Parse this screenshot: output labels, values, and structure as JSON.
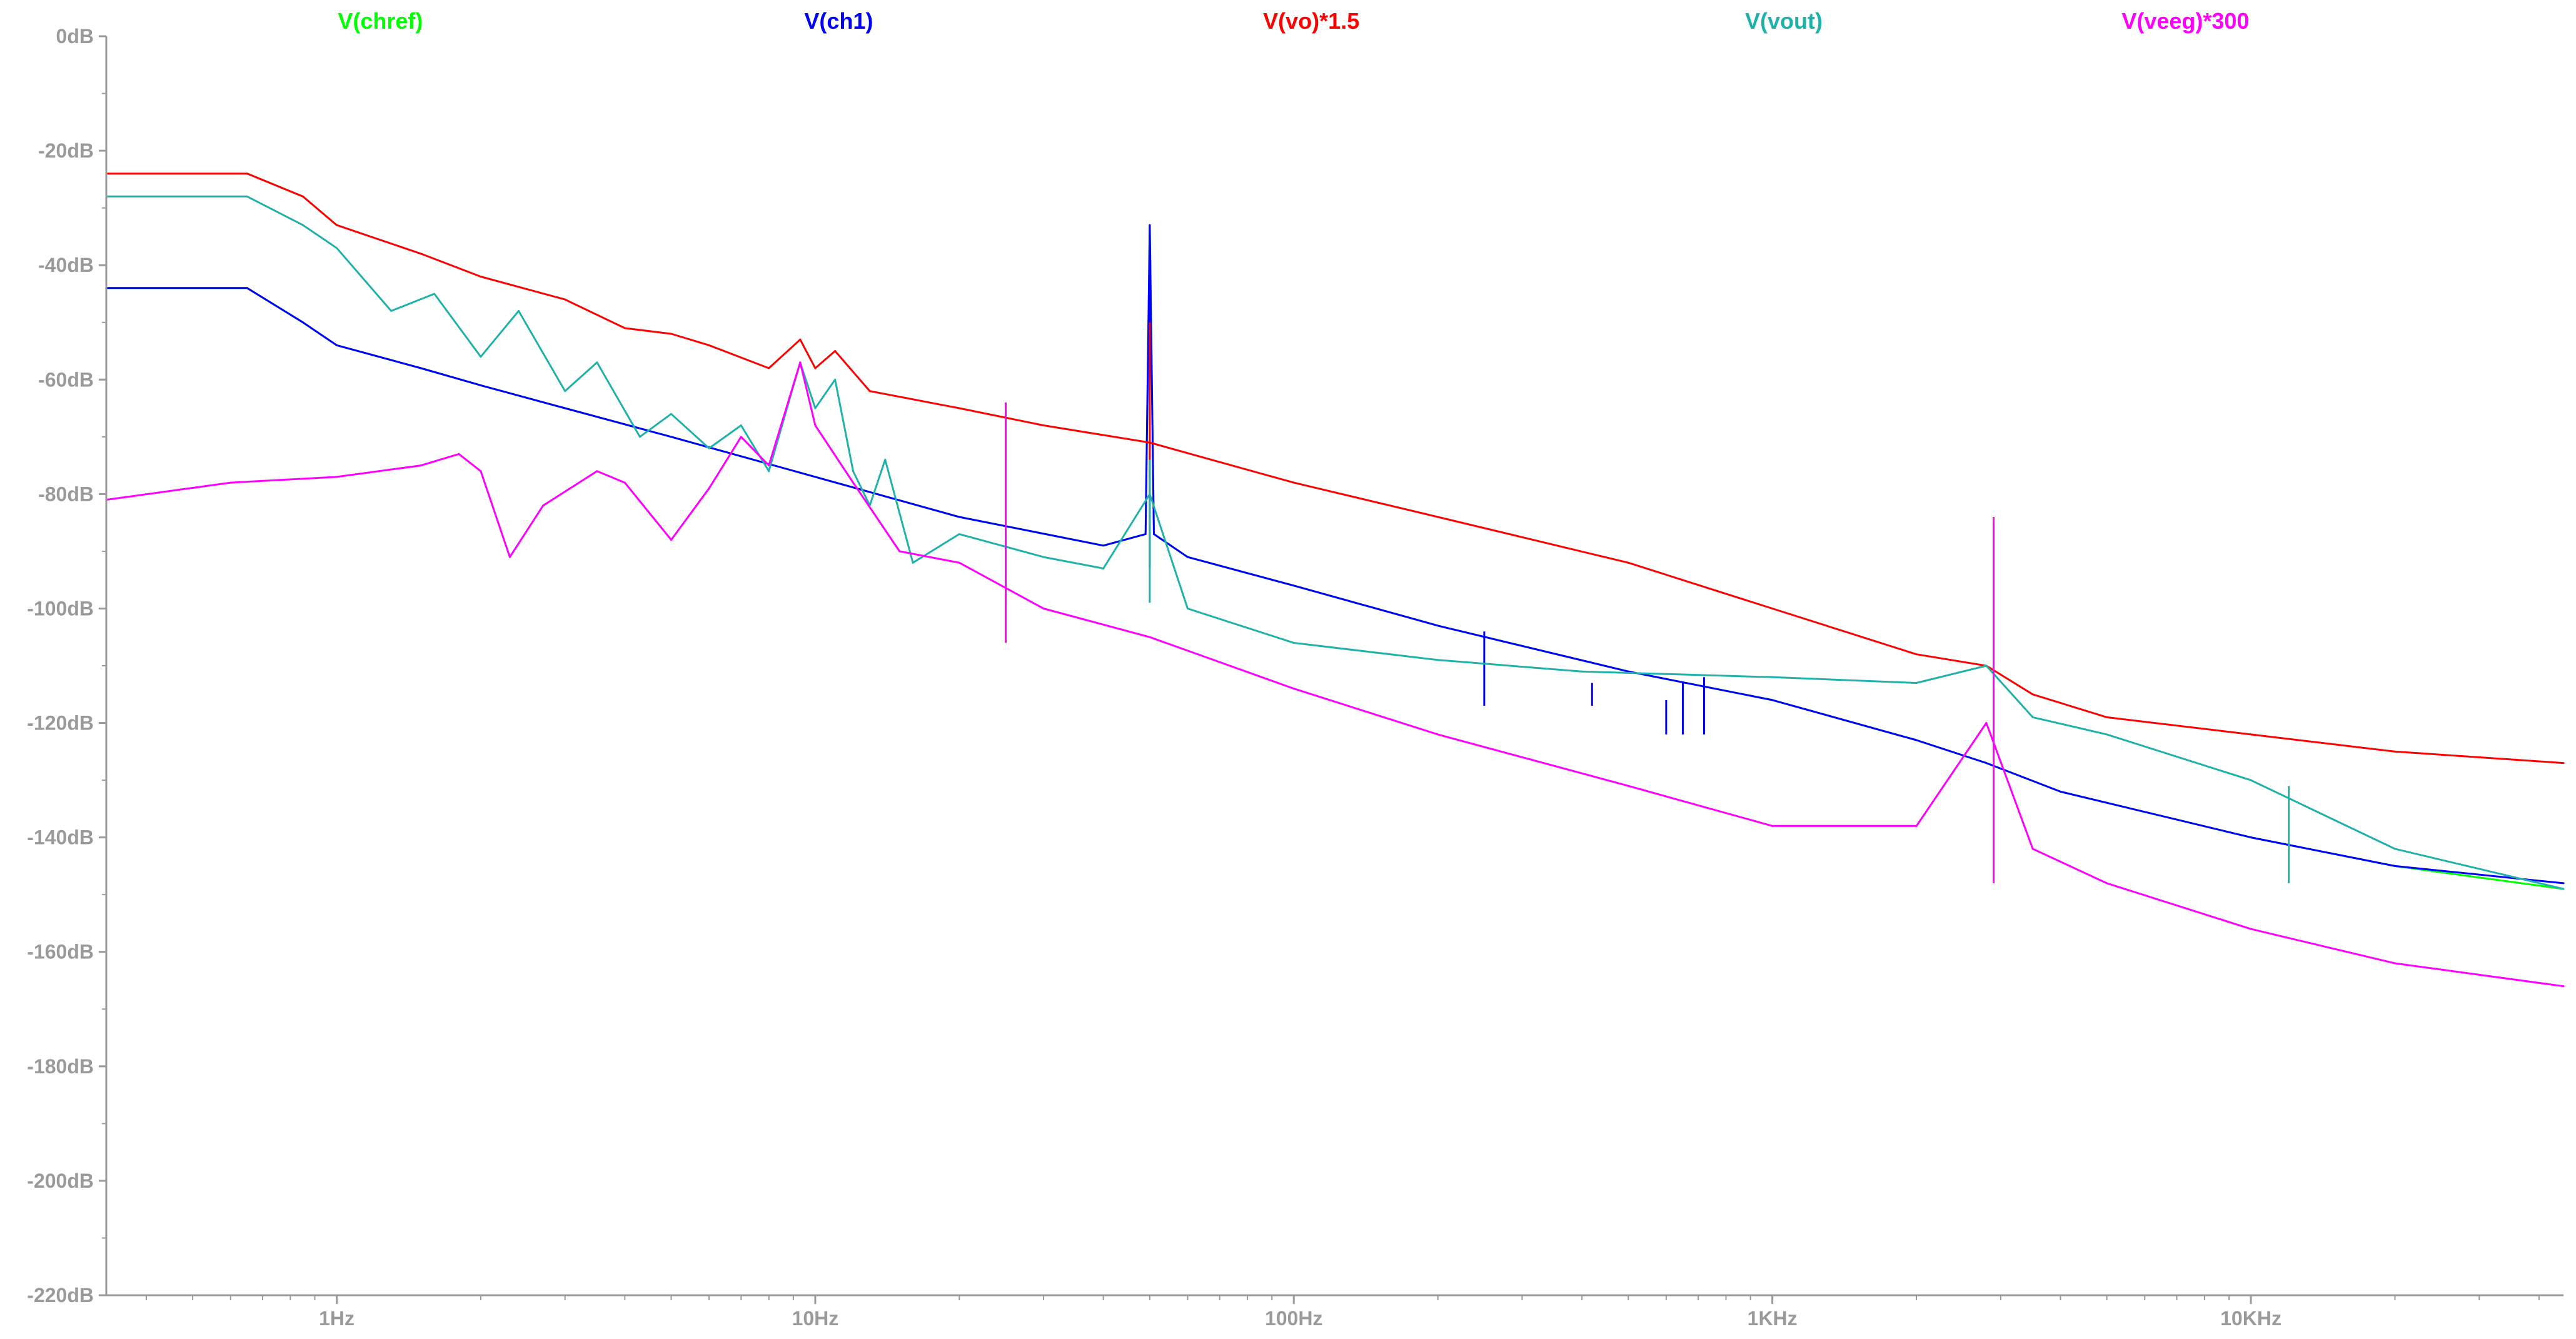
{
  "app": {
    "window": "LTspice FFT waveform plot"
  },
  "chart_data": {
    "type": "line",
    "x_scale": "log",
    "x_unit": "Hz",
    "xlim": [
      0.33,
      45000
    ],
    "ylim": [
      -220,
      0
    ],
    "grid": false,
    "legend_placement": "top",
    "x_ticks": [
      {
        "value": 1,
        "label": "1Hz"
      },
      {
        "value": 10,
        "label": "10Hz"
      },
      {
        "value": 100,
        "label": "100Hz"
      },
      {
        "value": 1000,
        "label": "1KHz"
      },
      {
        "value": 10000,
        "label": "10KHz"
      }
    ],
    "y_ticks": [
      {
        "value": 0,
        "label": "0dB"
      },
      {
        "value": -20,
        "label": "-20dB"
      },
      {
        "value": -40,
        "label": "-40dB"
      },
      {
        "value": -60,
        "label": "-60dB"
      },
      {
        "value": -80,
        "label": "-80dB"
      },
      {
        "value": -100,
        "label": "-100dB"
      },
      {
        "value": -120,
        "label": "-120dB"
      },
      {
        "value": -140,
        "label": "-140dB"
      },
      {
        "value": -160,
        "label": "-160dB"
      },
      {
        "value": -180,
        "label": "-180dB"
      },
      {
        "value": -200,
        "label": "-200dB"
      },
      {
        "value": -220,
        "label": "-220dB"
      }
    ],
    "series": [
      {
        "name": "V(chref)",
        "color": "#00ff00",
        "legend_x": 0.58,
        "points": [
          [
            0.33,
            -44
          ],
          [
            0.65,
            -44
          ],
          [
            0.85,
            -50
          ],
          [
            1.0,
            -54
          ],
          [
            1.5,
            -58
          ],
          [
            2,
            -61
          ],
          [
            3,
            -65
          ],
          [
            5,
            -70
          ],
          [
            10,
            -77
          ],
          [
            20,
            -84
          ],
          [
            40,
            -89
          ],
          [
            49,
            -87
          ],
          [
            50,
            -33
          ],
          [
            51,
            -87
          ],
          [
            60,
            -91
          ],
          [
            100,
            -96
          ],
          [
            200,
            -103
          ],
          [
            500,
            -111
          ],
          [
            1000,
            -116
          ],
          [
            2000,
            -123
          ],
          [
            2800,
            -127
          ],
          [
            4000,
            -132
          ],
          [
            10000,
            -140
          ],
          [
            20000,
            -145
          ],
          [
            45000,
            -149
          ]
        ],
        "spikes": []
      },
      {
        "name": "V(ch1)",
        "color": "#0000ff",
        "legend_x": 1.55,
        "points": [
          [
            0.33,
            -44
          ],
          [
            0.65,
            -44
          ],
          [
            0.85,
            -50
          ],
          [
            1.0,
            -54
          ],
          [
            1.5,
            -58
          ],
          [
            2,
            -61
          ],
          [
            3,
            -65
          ],
          [
            5,
            -70
          ],
          [
            10,
            -77
          ],
          [
            20,
            -84
          ],
          [
            40,
            -89
          ],
          [
            49,
            -87
          ],
          [
            50,
            -33
          ],
          [
            51,
            -87
          ],
          [
            60,
            -91
          ],
          [
            100,
            -96
          ],
          [
            200,
            -103
          ],
          [
            500,
            -111
          ],
          [
            1000,
            -116
          ],
          [
            2000,
            -123
          ],
          [
            2800,
            -127
          ],
          [
            4000,
            -132
          ],
          [
            10000,
            -140
          ],
          [
            20000,
            -145
          ],
          [
            45000,
            -148
          ]
        ],
        "spikes": [
          [
            50,
            -33
          ],
          [
            250,
            -104
          ],
          [
            420,
            -113
          ],
          [
            600,
            -116
          ],
          [
            650,
            -113
          ],
          [
            720,
            -112
          ]
        ]
      },
      {
        "name": "V(vo)*1.5",
        "color": "#ff0000",
        "legend_x": 2.55,
        "points": [
          [
            0.33,
            -24
          ],
          [
            0.65,
            -24
          ],
          [
            0.85,
            -28
          ],
          [
            1.0,
            -33
          ],
          [
            1.5,
            -38
          ],
          [
            2,
            -42
          ],
          [
            3,
            -46
          ],
          [
            4,
            -51
          ],
          [
            5,
            -52
          ],
          [
            6,
            -54
          ],
          [
            8,
            -58
          ],
          [
            9.3,
            -53
          ],
          [
            10,
            -58
          ],
          [
            11,
            -55
          ],
          [
            13,
            -62
          ],
          [
            20,
            -65
          ],
          [
            30,
            -68
          ],
          [
            50,
            -71
          ],
          [
            100,
            -78
          ],
          [
            200,
            -84
          ],
          [
            500,
            -92
          ],
          [
            1000,
            -100
          ],
          [
            2000,
            -108
          ],
          [
            2800,
            -110
          ],
          [
            3500,
            -115
          ],
          [
            5000,
            -119
          ],
          [
            10000,
            -122
          ],
          [
            20000,
            -125
          ],
          [
            45000,
            -127
          ]
        ],
        "spikes": [
          [
            25,
            -64
          ],
          [
            50,
            -50
          ]
        ]
      },
      {
        "name": "V(vout)",
        "color": "#20b2aa",
        "legend_x": 3.55,
        "points": [
          [
            0.33,
            -28
          ],
          [
            0.65,
            -28
          ],
          [
            0.85,
            -33
          ],
          [
            1.0,
            -37
          ],
          [
            1.3,
            -48
          ],
          [
            1.6,
            -45
          ],
          [
            2.0,
            -56
          ],
          [
            2.4,
            -48
          ],
          [
            3.0,
            -62
          ],
          [
            3.5,
            -57
          ],
          [
            4.3,
            -70
          ],
          [
            5,
            -66
          ],
          [
            6,
            -72
          ],
          [
            7,
            -68
          ],
          [
            8,
            -76
          ],
          [
            9.3,
            -57
          ],
          [
            10,
            -65
          ],
          [
            11,
            -60
          ],
          [
            12,
            -76
          ],
          [
            13,
            -82
          ],
          [
            14,
            -74
          ],
          [
            16,
            -92
          ],
          [
            20,
            -87
          ],
          [
            30,
            -91
          ],
          [
            40,
            -93
          ],
          [
            50,
            -80
          ],
          [
            60,
            -100
          ],
          [
            100,
            -106
          ],
          [
            200,
            -109
          ],
          [
            400,
            -111
          ],
          [
            1000,
            -112
          ],
          [
            2000,
            -113
          ],
          [
            2800,
            -110
          ],
          [
            3500,
            -119
          ],
          [
            5000,
            -122
          ],
          [
            10000,
            -130
          ],
          [
            20000,
            -142
          ],
          [
            45000,
            -149
          ]
        ],
        "spikes": [
          [
            25,
            -86
          ],
          [
            50,
            -74
          ],
          [
            2900,
            -85
          ],
          [
            12000,
            -131
          ]
        ]
      },
      {
        "name": "V(veeg)*300",
        "color": "#ff00ff",
        "legend_x": 4.4,
        "points": [
          [
            0.33,
            -81
          ],
          [
            0.6,
            -78
          ],
          [
            1.0,
            -77
          ],
          [
            1.5,
            -75
          ],
          [
            1.8,
            -73
          ],
          [
            2.0,
            -76
          ],
          [
            2.3,
            -91
          ],
          [
            2.7,
            -82
          ],
          [
            3.5,
            -76
          ],
          [
            4.0,
            -78
          ],
          [
            5,
            -88
          ],
          [
            6,
            -79
          ],
          [
            7,
            -70
          ],
          [
            8,
            -75
          ],
          [
            9.3,
            -57
          ],
          [
            10,
            -68
          ],
          [
            12,
            -78
          ],
          [
            15,
            -90
          ],
          [
            20,
            -92
          ],
          [
            30,
            -100
          ],
          [
            50,
            -105
          ],
          [
            100,
            -114
          ],
          [
            200,
            -122
          ],
          [
            500,
            -131
          ],
          [
            1000,
            -138
          ],
          [
            2000,
            -138
          ],
          [
            2800,
            -120
          ],
          [
            3500,
            -142
          ],
          [
            5000,
            -148
          ],
          [
            10000,
            -156
          ],
          [
            20000,
            -162
          ],
          [
            45000,
            -166
          ]
        ],
        "spikes": [
          [
            25,
            -64
          ],
          [
            2900,
            -84
          ]
        ]
      }
    ]
  }
}
